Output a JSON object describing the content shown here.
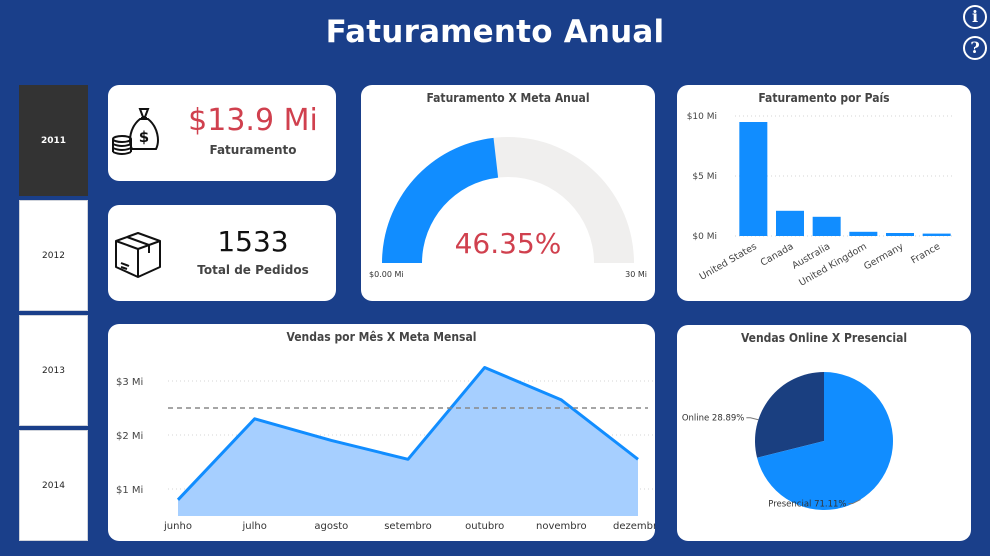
{
  "header": {
    "title": "Faturamento Anual",
    "info_icon": "i",
    "help_icon": "?"
  },
  "colors": {
    "background": "#1a3f8a",
    "accent_blue": "#118dff",
    "dark_blue": "#1a3f80",
    "kpi_red": "#d0404e",
    "area_fill": "#a6cfff",
    "selected_slicer": "#333333"
  },
  "year_slicer": {
    "items": [
      "2011",
      "2012",
      "2013",
      "2014"
    ],
    "selected": "2011"
  },
  "kpi_revenue": {
    "value": "$13.9 Mi",
    "label": "Faturamento",
    "icon": "money-bag-icon"
  },
  "kpi_orders": {
    "value": "1533",
    "label": "Total de Pedidos",
    "icon": "box-icon"
  },
  "gauge": {
    "title": "Faturamento X Meta Anual",
    "value_text": "46.35%",
    "min_label": "$0.00 Mi",
    "max_label": "30 Mi"
  },
  "country_chart": {
    "title": "Faturamento por País"
  },
  "monthly_chart": {
    "title": "Vendas por Mês X Meta Mensal"
  },
  "channel_chart": {
    "title": "Vendas Online X Presencial"
  },
  "chart_data": [
    {
      "type": "gauge",
      "title": "Faturamento X Meta Anual",
      "value": 13.9,
      "min": 0,
      "max": 30,
      "percent_label": "46.35%",
      "min_label": "$0.00 Mi",
      "max_label": "30 Mi"
    },
    {
      "type": "bar",
      "title": "Faturamento por País",
      "categories": [
        "United States",
        "Canada",
        "Australia",
        "United Kingdom",
        "Germany",
        "France"
      ],
      "values": [
        9.5,
        2.1,
        1.6,
        0.35,
        0.25,
        0.2
      ],
      "ylim": [
        0,
        10
      ],
      "yticks": [
        0,
        5,
        10
      ],
      "ytick_labels": [
        "$0 Mi",
        "$5 Mi",
        "$10 Mi"
      ],
      "grid": true
    },
    {
      "type": "area",
      "title": "Vendas por Mês X Meta Mensal",
      "categories": [
        "junho",
        "julho",
        "agosto",
        "setembro",
        "outubro",
        "novembro",
        "dezembro"
      ],
      "values": [
        0.8,
        2.3,
        1.9,
        1.55,
        3.25,
        2.65,
        1.55
      ],
      "target": 2.5,
      "ylim": [
        0.5,
        3.5
      ],
      "yticks": [
        1,
        2,
        3
      ],
      "ytick_labels": [
        "$1 Mi",
        "$2 Mi",
        "$3 Mi"
      ],
      "grid": true
    },
    {
      "type": "pie",
      "title": "Vendas Online X Presencial",
      "labels": [
        "Online",
        "Presencial"
      ],
      "values": [
        28.89,
        71.11
      ],
      "data_labels": [
        "Online 28.89%",
        "Presencial 71.11%"
      ],
      "colors": [
        "#1a3f80",
        "#118dff"
      ]
    }
  ]
}
